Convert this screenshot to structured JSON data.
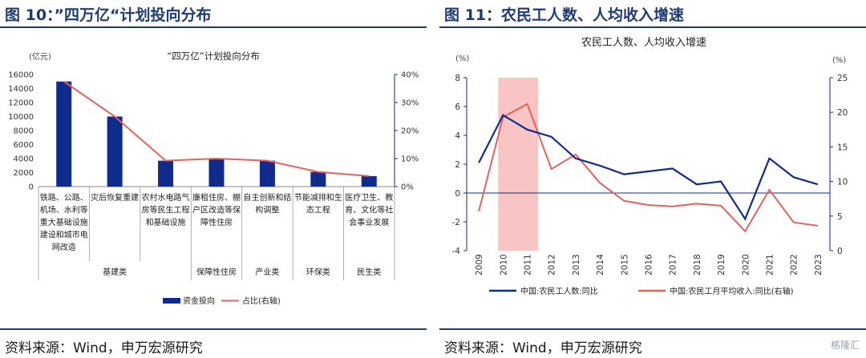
{
  "left": {
    "figure_title": "图 10：”四万亿“计划投向分布",
    "source": "资料来源：Wind，申万宏源研究",
    "chart_data": {
      "type": "bar",
      "title": "“四万亿”计划投向分布",
      "ylabel_left": "(亿元)",
      "ylim": [
        0,
        16000
      ],
      "y_ticks": [
        "0",
        "2000",
        "4000",
        "6000",
        "8000",
        "10000",
        "12000",
        "14000",
        "16000"
      ],
      "y2lim": [
        0,
        40
      ],
      "y2_ticks": [
        "0%",
        "10%",
        "20%",
        "30%",
        "40%"
      ],
      "categories": [
        "铁路、公路、机场、水利等重大基础设施建设和城市电网改造",
        "灾后恢复重建",
        "农村水电路气房等民生工程和基础设施",
        "廉租住房、棚户区改造等保障性住房",
        "自主创新和结构调整",
        "节能减排和生态工程",
        "医疗卫生、教育、文化等社会事业发展"
      ],
      "category_lines": [
        [
          "铁路、公路、",
          "机场、水利等",
          "重大基础设施",
          "建设和城市电",
          "网改造"
        ],
        [
          "灾后恢复重建"
        ],
        [
          "农村水电路气",
          "房等民生工程",
          "和基础设施"
        ],
        [
          "廉租住房、棚",
          "户区改造等保",
          "障性住房"
        ],
        [
          "自主创新和结",
          "构调整"
        ],
        [
          "节能减排和生",
          "态工程"
        ],
        [
          "医疗卫生、教",
          "育、文化等社",
          "会事业发展"
        ]
      ],
      "groups": [
        {
          "label": "基建类",
          "span": [
            0,
            2
          ]
        },
        {
          "label": "保障性住房",
          "span": [
            3,
            3
          ]
        },
        {
          "label": "产业类",
          "span": [
            4,
            4
          ]
        },
        {
          "label": "环保类",
          "span": [
            5,
            5
          ]
        },
        {
          "label": "民生类",
          "span": [
            6,
            6
          ]
        }
      ],
      "series": [
        {
          "name": "资金投向",
          "kind": "bar",
          "axis": "left",
          "color": "#0f2b8c",
          "values": [
            15000,
            10000,
            3700,
            4000,
            3700,
            2100,
            1500
          ]
        },
        {
          "name": "占比(右轴)",
          "kind": "line",
          "axis": "right",
          "color": "#e8605a",
          "values": [
            37.5,
            25,
            9.25,
            10,
            9.25,
            5.25,
            3.75
          ]
        }
      ],
      "legend_position": "bottom"
    }
  },
  "right": {
    "figure_title": "图 11：农民工人数、人均收入增速",
    "source": "资料来源：Wind，申万宏源研究",
    "watermark": "格隆汇",
    "chart_data": {
      "type": "line",
      "title": "农民工人数、人均收入增速",
      "ylabel_left": "(%)",
      "ylabel_right": "(%)",
      "ylim": [
        -4,
        8
      ],
      "y_ticks": [
        "-4",
        "-2",
        "0",
        "2",
        "4",
        "6",
        "8"
      ],
      "y2lim": [
        0,
        25
      ],
      "y2_ticks": [
        "0",
        "5",
        "10",
        "15",
        "20",
        "25"
      ],
      "x": [
        "2009",
        "2010",
        "2011",
        "2012",
        "2013",
        "2014",
        "2015",
        "2016",
        "2017",
        "2018",
        "2019",
        "2020",
        "2021",
        "2022",
        "2023"
      ],
      "highlight": {
        "from": "2010",
        "to": "2011",
        "color": "#f8c4c4"
      },
      "series": [
        {
          "name": "中国:农民工人数:同比",
          "axis": "left",
          "color": "#0f2b8c",
          "values": [
            2.1,
            5.4,
            4.4,
            3.9,
            2.4,
            1.9,
            1.3,
            1.5,
            1.7,
            0.6,
            0.8,
            -1.8,
            2.4,
            1.1,
            0.6
          ]
        },
        {
          "name": "中国:农民工月平均收入:同比(右轴)",
          "axis": "right",
          "color": "#e8605a",
          "values": [
            5.7,
            19.3,
            21.2,
            11.8,
            13.9,
            9.8,
            7.2,
            6.6,
            6.4,
            6.8,
            6.5,
            2.8,
            8.8,
            4.1,
            3.6
          ]
        }
      ],
      "legend_position": "bottom"
    }
  }
}
